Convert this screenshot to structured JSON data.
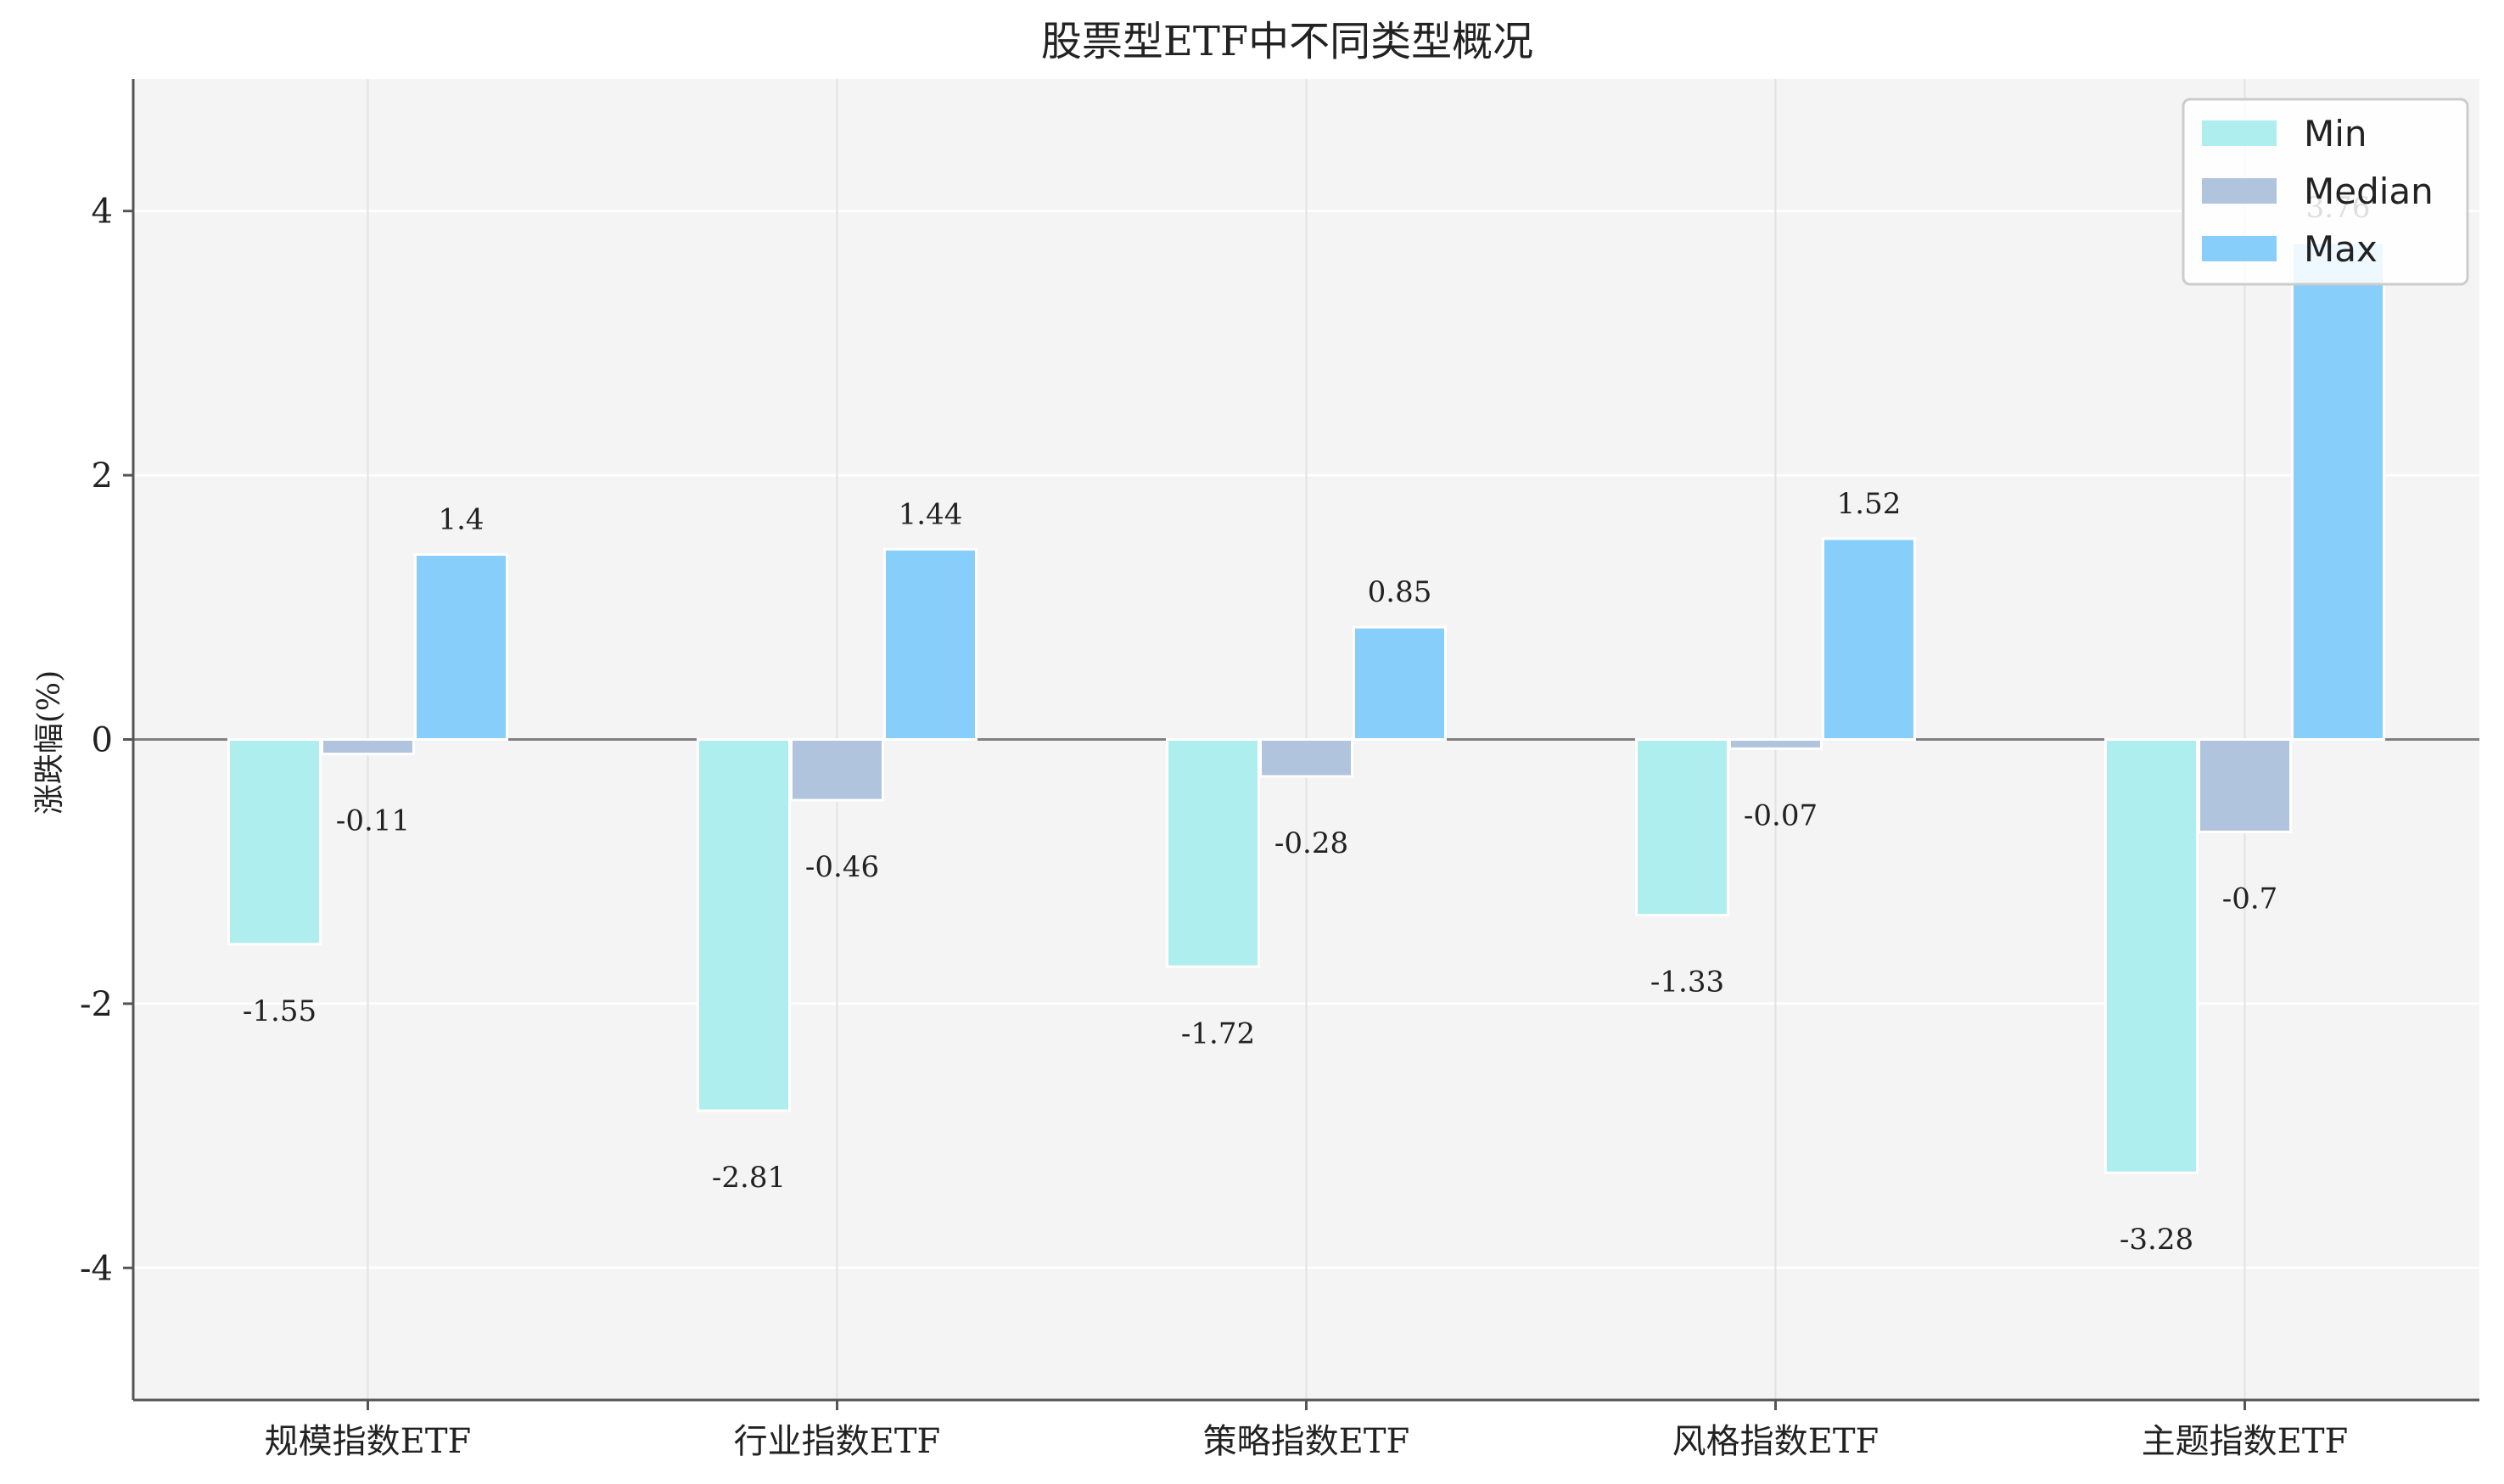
{
  "chart_data": {
    "type": "bar",
    "title": "股票型ETF中不同类型概况",
    "xlabel": "",
    "ylabel": "涨跌幅(%)",
    "categories": [
      "规模指数ETF",
      "行业指数ETF",
      "策略指数ETF",
      "风格指数ETF",
      "主题指数ETF"
    ],
    "series": [
      {
        "name": "Min",
        "color": "#AFEEEE",
        "values": [
          -1.55,
          -2.81,
          -1.72,
          -1.33,
          -3.28
        ]
      },
      {
        "name": "Median",
        "color": "#B0C4DE",
        "values": [
          -0.11,
          -0.46,
          -0.28,
          -0.07,
          -0.7
        ]
      },
      {
        "name": "Max",
        "color": "#87CEFA",
        "values": [
          1.4,
          1.44,
          0.85,
          1.52,
          3.76
        ]
      }
    ],
    "ylim": [
      -5,
      5
    ],
    "yticks": [
      -4,
      -2,
      0,
      2,
      4
    ],
    "ytick_labels": [
      "-4",
      "-2",
      "0",
      "2",
      "4"
    ],
    "grid": true,
    "legend_position": "top-right",
    "plot_background": "#F4F4F4",
    "zero_line_color": "#808080"
  }
}
